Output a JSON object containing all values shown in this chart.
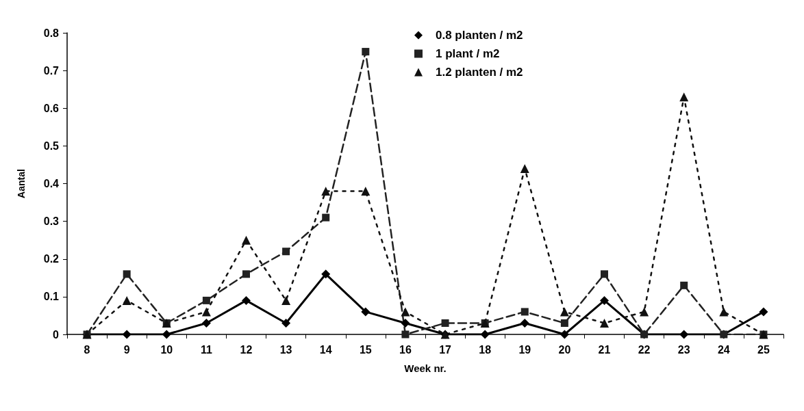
{
  "chart_data": {
    "type": "line",
    "xlabel": "Week nr.",
    "ylabel": "Aantal",
    "categories": [
      "8",
      "9",
      "10",
      "11",
      "12",
      "13",
      "14",
      "15",
      "16",
      "17",
      "18",
      "19",
      "20",
      "21",
      "22",
      "23",
      "24",
      "25"
    ],
    "series": [
      {
        "name": "0.8 planten / m2",
        "color": "#000000",
        "marker": "diamond",
        "line_style": "solid",
        "values": [
          0,
          0,
          0,
          0.03,
          0.09,
          0.03,
          0.16,
          0.06,
          0.03,
          0,
          0,
          0.03,
          0,
          0.09,
          0,
          0,
          0,
          0.06
        ]
      },
      {
        "name": "1 plant / m2",
        "color": "#222222",
        "marker": "square",
        "line_style": "dashed",
        "values": [
          0,
          0.16,
          0.03,
          0.09,
          0.16,
          0.22,
          0.31,
          0.75,
          0,
          0.03,
          0.03,
          0.06,
          0.03,
          0.16,
          0,
          0.13,
          0,
          0
        ]
      },
      {
        "name": "1.2 planten / m2",
        "color": "#111111",
        "marker": "triangle",
        "line_style": "dotted",
        "values": [
          0,
          0.09,
          0.03,
          0.06,
          0.25,
          0.09,
          0.38,
          0.38,
          0.06,
          0,
          0.03,
          0.44,
          0.06,
          0.03,
          0.06,
          0.63,
          0.06,
          0
        ]
      }
    ],
    "ylim": [
      0,
      0.8
    ],
    "yticks": [
      0,
      0.1,
      0.2,
      0.3,
      0.4,
      0.5,
      0.6,
      0.7,
      0.8
    ],
    "grid": false,
    "legend": "top"
  }
}
